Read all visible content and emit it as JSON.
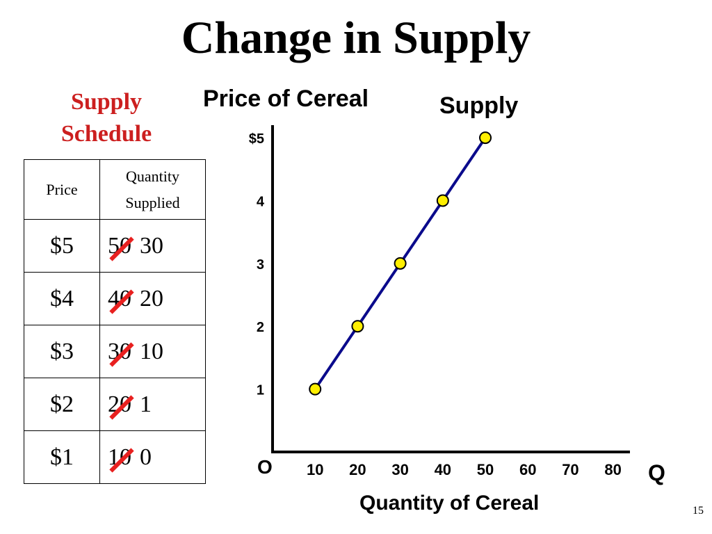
{
  "slide": {
    "title": "Change in Supply",
    "page_number": "15"
  },
  "schedule": {
    "title_line1": "Supply",
    "title_line2": "Schedule",
    "header_price": "Price",
    "header_qty_line1": "Quantity",
    "header_qty_line2": "Supplied",
    "rows": [
      {
        "price": "$5",
        "old_qty": "50",
        "new_qty": "30"
      },
      {
        "price": "$4",
        "old_qty": "40",
        "new_qty": "20"
      },
      {
        "price": "$3",
        "old_qty": "30",
        "new_qty": "10"
      },
      {
        "price": "$2",
        "old_qty": "20",
        "new_qty": "1"
      },
      {
        "price": "$1",
        "old_qty": "10",
        "new_qty": "0"
      }
    ]
  },
  "chart_data": {
    "type": "line",
    "title": "",
    "ylabel": "Price of Cereal",
    "xlabel": "Quantity of Cereal",
    "origin_label": "O",
    "x_axis_letter": "Q",
    "x_ticks": [
      10,
      20,
      30,
      40,
      50,
      60,
      70,
      80
    ],
    "x_tick_labels": [
      "10",
      "20",
      "30",
      "40",
      "50",
      "60",
      "70",
      "80"
    ],
    "y_ticks": [
      1,
      2,
      3,
      4,
      5
    ],
    "y_tick_labels": [
      "1",
      "2",
      "3",
      "4",
      "$5"
    ],
    "xlim": [
      0,
      83
    ],
    "ylim": [
      0,
      5.2
    ],
    "curve_color": "#0a0a8c",
    "marker_color": "#ffef00",
    "series": [
      {
        "name": "Supply",
        "x": [
          10,
          20,
          30,
          40,
          50
        ],
        "y": [
          1,
          2,
          3,
          4,
          5
        ]
      }
    ]
  }
}
